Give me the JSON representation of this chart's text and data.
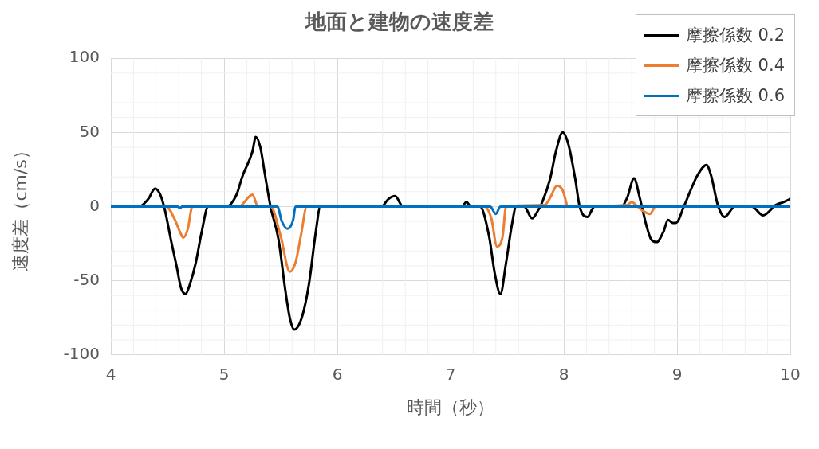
{
  "chart_data": {
    "type": "line",
    "title": "地面と建物の速度差",
    "xlabel": "時間（秒）",
    "ylabel": "速度差（cm/s）",
    "xlim": [
      4,
      10
    ],
    "xticks": [
      4,
      5,
      6,
      7,
      8,
      9,
      10
    ],
    "ylim": [
      -100,
      100
    ],
    "yticks": [
      -100,
      -50,
      0,
      50,
      100
    ],
    "grid": true,
    "legend": "top right",
    "marker": "none",
    "line_style": "solid",
    "series": [
      {
        "name": "摩擦係数 0.2",
        "color": "#000000",
        "x": [
          4,
          4.25,
          4.33,
          4.39,
          4.43,
          4.47,
          4.54,
          4.58,
          4.62,
          4.66,
          4.7,
          4.75,
          4.8,
          4.86,
          5.02,
          5.11,
          5.16,
          5.25,
          5.28,
          5.32,
          5.36,
          5.41,
          5.48,
          5.54,
          5.58,
          5.62,
          5.69,
          5.75,
          5.81,
          5.85,
          6.39,
          6.45,
          6.51,
          6.58,
          7.1,
          7.14,
          7.18,
          7.26,
          7.34,
          7.39,
          7.44,
          7.49,
          7.54,
          7.58,
          7.65,
          7.72,
          7.77,
          7.81,
          7.88,
          7.93,
          7.99,
          8.04,
          8.1,
          8.14,
          8.21,
          8.25,
          8.27,
          8.51,
          8.56,
          8.62,
          8.67,
          8.73,
          8.77,
          8.82,
          8.88,
          8.92,
          8.96,
          8.99,
          9.06,
          9.12,
          9.18,
          9.26,
          9.3,
          9.36,
          9.42,
          9.48,
          9.5,
          9.66,
          9.76,
          9.83,
          9.85,
          9.94,
          10
        ],
        "values": [
          0,
          0,
          5,
          12,
          9,
          0,
          -26,
          -40,
          -55,
          -59,
          -52,
          -38,
          -18,
          0,
          0,
          8,
          20,
          37,
          47,
          40,
          22,
          0,
          -22,
          -56,
          -75,
          -83,
          -74,
          -52,
          -17,
          0,
          0,
          5,
          7,
          0,
          0,
          3,
          0,
          0,
          -20,
          -45,
          -59,
          -38,
          -13,
          0,
          0,
          -8,
          -3,
          3,
          19,
          37,
          50,
          42,
          19,
          0,
          -7,
          -2,
          0,
          0,
          6,
          19,
          6,
          -13,
          -22,
          -24,
          -17,
          -9,
          -11,
          -11,
          0,
          11,
          21,
          28,
          21,
          1,
          -7,
          -2,
          0,
          0,
          -6,
          -2,
          0,
          3,
          5
        ]
      },
      {
        "name": "摩擦係数 0.4",
        "color": "#ed7d31",
        "x": [
          4,
          4.49,
          4.56,
          4.61,
          4.64,
          4.68,
          4.72,
          5.13,
          5.25,
          5.3,
          5.41,
          5.5,
          5.58,
          5.63,
          5.68,
          5.73,
          7.3,
          7.36,
          7.41,
          7.46,
          7.49,
          7.83,
          7.88,
          7.94,
          7.99,
          8.04,
          8.56,
          8.6,
          8.65,
          8.7,
          8.76,
          8.81,
          10
        ],
        "values": [
          0,
          0,
          -8,
          -17,
          -21,
          -15,
          0,
          0,
          8,
          0,
          0,
          -20,
          -44,
          -38,
          -19,
          0,
          0,
          -8,
          -27,
          -20,
          0,
          1,
          6,
          14,
          11,
          0,
          1,
          3,
          0,
          -3,
          -5,
          0,
          0
        ]
      },
      {
        "name": "摩擦係数 0.6",
        "color": "#0070c0",
        "x": [
          4,
          4.59,
          4.61,
          4.63,
          5.47,
          5.51,
          5.56,
          5.61,
          5.63,
          7.35,
          7.4,
          7.44,
          10
        ],
        "values": [
          0,
          0,
          -1,
          0,
          0,
          -10,
          -15,
          -9,
          0,
          0,
          -5,
          0,
          0
        ]
      }
    ]
  }
}
